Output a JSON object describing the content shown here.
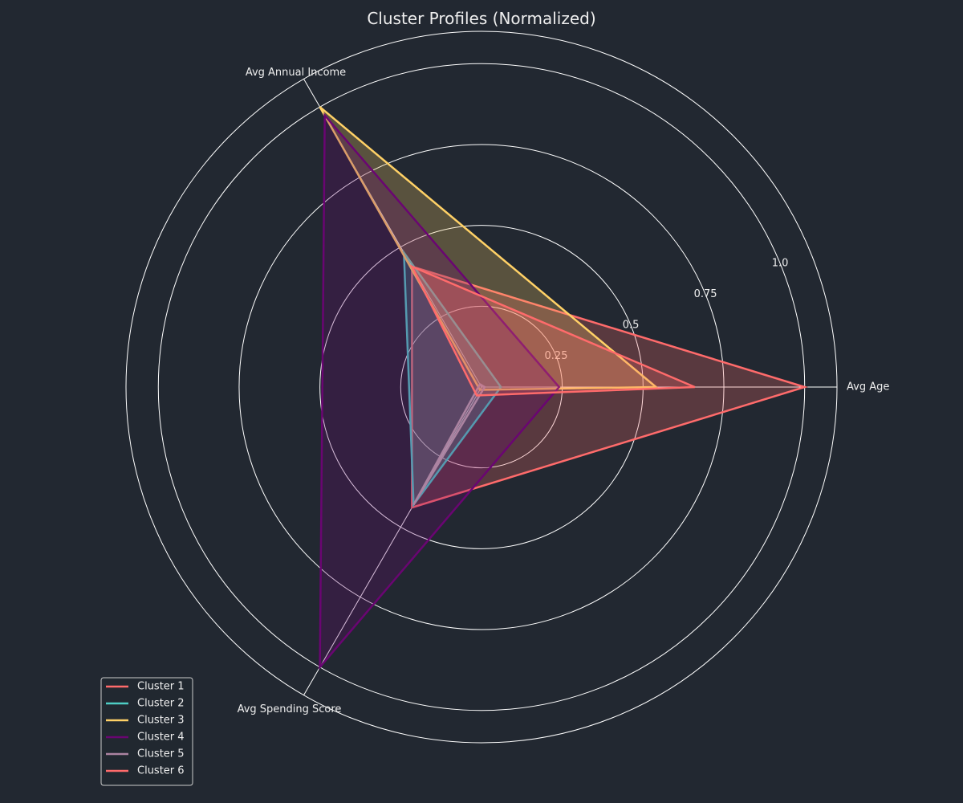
{
  "chart_data": {
    "type": "radar",
    "title": "Cluster Profiles (Normalized)",
    "axes": [
      "Avg Age",
      "Avg Annual Income",
      "Avg Spending Score"
    ],
    "rlim": [
      0,
      1.1
    ],
    "rticks": [
      0.25,
      0.5,
      0.75,
      1.0
    ],
    "rtick_labels": [
      "0.25",
      "0.5",
      "0.75",
      "1.0"
    ],
    "grid": true,
    "legend_position": "lower-left",
    "series": [
      {
        "name": "Cluster 1",
        "color": "#FF6B6B",
        "values": [
          1.0,
          0.43,
          0.43
        ]
      },
      {
        "name": "Cluster 2",
        "color": "#4ECDC4",
        "values": [
          0.06,
          0.48,
          0.42
        ]
      },
      {
        "name": "Cluster 3",
        "color": "#FFD166",
        "values": [
          0.54,
          1.0,
          0.01
        ]
      },
      {
        "name": "Cluster 4",
        "color": "#6A0572",
        "values": [
          0.24,
          0.97,
          1.0
        ]
      },
      {
        "name": "Cluster 5",
        "color": "#AB83A1",
        "values": [
          0.01,
          0.01,
          0.42
        ]
      },
      {
        "name": "Cluster 6",
        "color": "#FF6B6B",
        "values": [
          0.66,
          0.43,
          0.03
        ]
      }
    ]
  }
}
